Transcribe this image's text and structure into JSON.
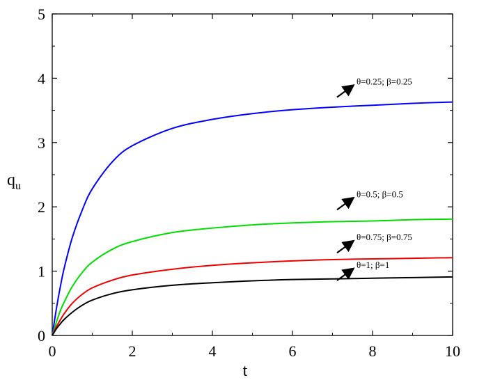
{
  "chart_data": {
    "type": "line",
    "xlabel": "t",
    "ylabel": "q",
    "ylabel_sub": "u",
    "xlim": [
      0,
      10
    ],
    "ylim": [
      0,
      5
    ],
    "xticks": [
      0,
      2,
      4,
      6,
      8,
      10
    ],
    "yticks": [
      0,
      1,
      2,
      3,
      4,
      5
    ],
    "grid": false,
    "series": [
      {
        "name": "θ=0.25; β=0.25",
        "color": "#0000ff",
        "x": [
          0,
          0.1,
          0.2,
          0.3,
          0.5,
          0.75,
          1,
          1.5,
          2,
          3,
          4,
          5,
          6,
          7,
          8,
          9,
          10
        ],
        "y": [
          0,
          0.4,
          0.75,
          1.05,
          1.52,
          1.95,
          2.28,
          2.7,
          2.95,
          3.22,
          3.36,
          3.45,
          3.51,
          3.55,
          3.58,
          3.61,
          3.63
        ]
      },
      {
        "name": "θ=0.5; β=0.5",
        "color": "#00dd00",
        "x": [
          0,
          0.1,
          0.2,
          0.3,
          0.5,
          0.75,
          1,
          1.5,
          2,
          3,
          4,
          5,
          6,
          7,
          8,
          9,
          10
        ],
        "y": [
          0,
          0.2,
          0.38,
          0.52,
          0.76,
          0.98,
          1.14,
          1.34,
          1.46,
          1.6,
          1.67,
          1.72,
          1.75,
          1.77,
          1.78,
          1.8,
          1.81
        ]
      },
      {
        "name": "θ=0.75; β=0.75",
        "color": "#ee0000",
        "x": [
          0,
          0.1,
          0.2,
          0.3,
          0.5,
          0.75,
          1,
          1.5,
          2,
          3,
          4,
          5,
          6,
          7,
          8,
          9,
          10
        ],
        "y": [
          0,
          0.13,
          0.24,
          0.34,
          0.5,
          0.64,
          0.74,
          0.86,
          0.94,
          1.03,
          1.09,
          1.13,
          1.16,
          1.18,
          1.19,
          1.2,
          1.21
        ]
      },
      {
        "name": "θ=1; β=1",
        "color": "#000000",
        "x": [
          0,
          0.1,
          0.2,
          0.3,
          0.5,
          0.75,
          1,
          1.5,
          2,
          3,
          4,
          5,
          6,
          7,
          8,
          9,
          10
        ],
        "y": [
          0,
          0.1,
          0.18,
          0.25,
          0.36,
          0.47,
          0.55,
          0.65,
          0.71,
          0.78,
          0.82,
          0.85,
          0.87,
          0.88,
          0.89,
          0.9,
          0.91
        ]
      }
    ],
    "annotations": [
      {
        "text": "θ=0.25; β=0.25",
        "series": 0,
        "at": [
          7.6,
          3.9
        ]
      },
      {
        "text": "θ=0.5; β=0.5",
        "series": 1,
        "at": [
          7.6,
          2.15
        ]
      },
      {
        "text": "θ=0.75; β=0.75",
        "series": 2,
        "at": [
          7.6,
          1.48
        ]
      },
      {
        "text": "θ=1; β=1",
        "series": 3,
        "at": [
          7.6,
          1.05
        ]
      }
    ]
  }
}
